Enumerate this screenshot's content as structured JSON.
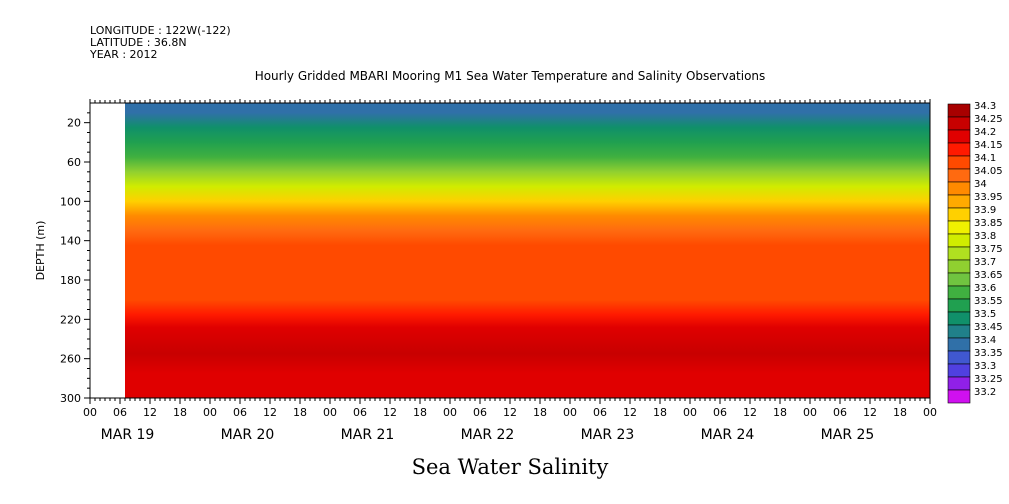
{
  "header": {
    "longitude": "LONGITUDE : 122W(-122)",
    "latitude": "LATITUDE : 36.8N",
    "year": "YEAR : 2012",
    "title": "Hourly Gridded MBARI Mooring M1 Sea Water Temperature and Salinity Observations"
  },
  "variable_label": "Sea Water Salinity",
  "chart_data": {
    "type": "heatmap",
    "title": "Hourly Gridded MBARI Mooring M1 Sea Water Temperature and Salinity Observations",
    "xlabel": "",
    "ylabel": "DEPTH (m)",
    "ylim": [
      300,
      0
    ],
    "y_ticks": [
      20,
      60,
      100,
      140,
      180,
      220,
      260,
      300
    ],
    "x_hour_ticks": [
      "00",
      "06",
      "12",
      "18",
      "00",
      "06",
      "12",
      "18",
      "00",
      "06",
      "12",
      "18",
      "00",
      "06",
      "12",
      "18",
      "00",
      "06",
      "12",
      "18",
      "00",
      "06",
      "12",
      "18",
      "00",
      "06",
      "12",
      "18",
      "00"
    ],
    "x_date_labels": [
      "MAR 19",
      "MAR 20",
      "MAR 21",
      "MAR 22",
      "MAR 23",
      "MAR 24",
      "MAR 25"
    ],
    "data_start": "MAR 19 07:00",
    "colorbar": {
      "labels": [
        "34.3",
        "34.25",
        "34.2",
        "34.15",
        "34.1",
        "34.05",
        "34",
        "33.95",
        "33.9",
        "33.85",
        "33.8",
        "33.75",
        "33.7",
        "33.65",
        "33.6",
        "33.55",
        "33.5",
        "33.45",
        "33.4",
        "33.35",
        "33.3",
        "33.25",
        "33.2"
      ],
      "colors": [
        "#a80000",
        "#c80000",
        "#e00000",
        "#ff1a00",
        "#ff4a00",
        "#ff6a10",
        "#ff8a00",
        "#ffaa00",
        "#ffd000",
        "#f0f000",
        "#d0ec00",
        "#b0e020",
        "#90d030",
        "#70c440",
        "#40b040",
        "#20a050",
        "#10906a",
        "#20808a",
        "#3070a8",
        "#4058d0",
        "#5040e0",
        "#9020e8",
        "#d010f0"
      ]
    },
    "depth_profile": [
      {
        "depth_m": 10,
        "salinity": 33.4
      },
      {
        "depth_m": 25,
        "salinity": 33.5
      },
      {
        "depth_m": 40,
        "salinity": 33.55
      },
      {
        "depth_m": 55,
        "salinity": 33.62
      },
      {
        "depth_m": 70,
        "salinity": 33.72
      },
      {
        "depth_m": 85,
        "salinity": 33.82
      },
      {
        "depth_m": 100,
        "salinity": 33.92
      },
      {
        "depth_m": 115,
        "salinity": 34.0
      },
      {
        "depth_m": 130,
        "salinity": 34.05
      },
      {
        "depth_m": 145,
        "salinity": 34.08
      },
      {
        "depth_m": 200,
        "salinity": 34.1
      },
      {
        "depth_m": 215,
        "salinity": 34.13
      },
      {
        "depth_m": 228,
        "salinity": 34.18
      },
      {
        "depth_m": 255,
        "salinity": 34.25
      },
      {
        "depth_m": 275,
        "salinity": 34.2
      },
      {
        "depth_m": 300,
        "salinity": 34.18
      }
    ],
    "grid": false,
    "legend": "colorbar-right"
  }
}
